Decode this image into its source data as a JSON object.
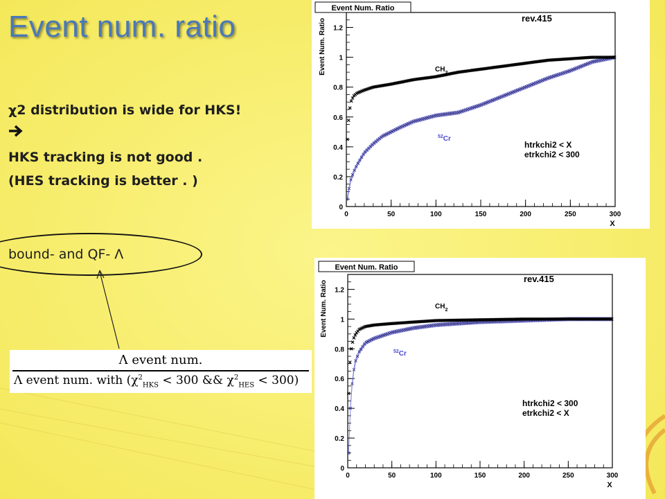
{
  "slide": {
    "title": "Event num. ratio",
    "bullets": [
      "χ2 distribution is wide for HKS!",
      "",
      "HKS tracking is not good .",
      "(HES tracking is better . )"
    ],
    "callout": "bound- and QF- Λ",
    "formula": {
      "numerator": "Λ event num.",
      "denominator_prefix": "Λ event num. with (χ",
      "hks_sub": "HKS",
      "mid": " < 300 && χ",
      "hes_sub": "HES",
      "suffix": " < 300)",
      "sup": "2"
    }
  },
  "colors": {
    "background": "#f8f070",
    "title": "#4a78b8",
    "cr_series": "#7070d8",
    "cr_band": "#9090e8",
    "ch2_series": "#000000"
  },
  "chart_data": [
    {
      "type": "scatter",
      "title": "Event Num. Ratio",
      "tag": "rev.415",
      "xlabel": "X",
      "ylabel": "Event Num. Ratio",
      "xlim": [
        0,
        300
      ],
      "ylim": [
        0,
        1.3
      ],
      "xticks": [
        "0",
        "50",
        "100",
        "150",
        "200",
        "250",
        "300"
      ],
      "yticks": [
        "0",
        "0.2",
        "0.4",
        "0.6",
        "0.8",
        "1",
        "1.2"
      ],
      "cuts": [
        "htrkchi2 < X",
        "etrkchi2 < 300"
      ],
      "series": [
        {
          "name": "CH2",
          "x": [
            1,
            3,
            5,
            8,
            12,
            20,
            30,
            50,
            75,
            100,
            125,
            150,
            175,
            200,
            225,
            250,
            275,
            300
          ],
          "y": [
            0.45,
            0.62,
            0.7,
            0.74,
            0.76,
            0.78,
            0.8,
            0.82,
            0.85,
            0.87,
            0.9,
            0.92,
            0.94,
            0.96,
            0.98,
            0.99,
            1.0,
            1.0
          ]
        },
        {
          "name": "52Cr",
          "x": [
            1,
            3,
            5,
            8,
            12,
            20,
            30,
            40,
            50,
            60,
            75,
            100,
            125,
            150,
            175,
            200,
            225,
            250,
            275,
            300
          ],
          "y": [
            0.05,
            0.12,
            0.18,
            0.23,
            0.28,
            0.36,
            0.42,
            0.47,
            0.5,
            0.53,
            0.57,
            0.61,
            0.63,
            0.68,
            0.74,
            0.8,
            0.86,
            0.91,
            0.97,
            1.0
          ]
        }
      ]
    },
    {
      "type": "scatter",
      "title": "Event Num. Ratio",
      "tag": "rev.415",
      "xlabel": "X",
      "ylabel": "Event Num. Ratio",
      "xlim": [
        0,
        300
      ],
      "ylim": [
        0,
        1.3
      ],
      "xticks": [
        "0",
        "50",
        "100",
        "150",
        "200",
        "250",
        "300"
      ],
      "yticks": [
        "0",
        "0.2",
        "0.4",
        "0.6",
        "0.8",
        "1",
        "1.2"
      ],
      "cuts": [
        "htrkchi2 < 300",
        "etrkchi2 < X"
      ],
      "series": [
        {
          "name": "CH2",
          "x": [
            1,
            2,
            4,
            6,
            9,
            13,
            20,
            30,
            50,
            75,
            100,
            150,
            200,
            250,
            300
          ],
          "y": [
            0.5,
            0.68,
            0.8,
            0.86,
            0.9,
            0.93,
            0.95,
            0.96,
            0.97,
            0.98,
            0.99,
            0.995,
            1.0,
            1.0,
            1.0
          ]
        },
        {
          "name": "52Cr",
          "x": [
            1,
            2,
            4,
            6,
            9,
            13,
            20,
            30,
            40,
            50,
            75,
            100,
            150,
            200,
            250,
            300
          ],
          "y": [
            0.1,
            0.3,
            0.5,
            0.63,
            0.72,
            0.78,
            0.84,
            0.87,
            0.89,
            0.91,
            0.94,
            0.96,
            0.98,
            0.99,
            1.0,
            1.0
          ]
        }
      ]
    }
  ]
}
